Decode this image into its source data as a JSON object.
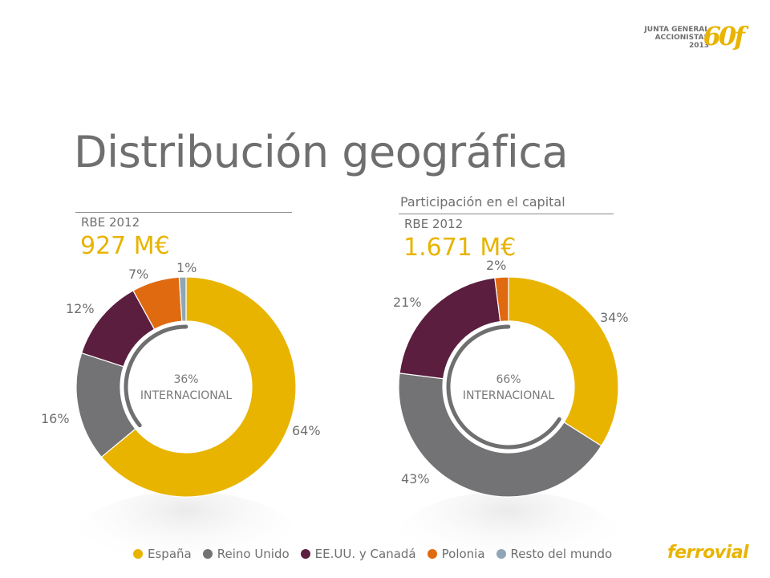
{
  "header": {
    "title": "Distribución geográfica",
    "event_logo_text": [
      "JUNTA GENERAL",
      "ACCIONISTAS",
      "2013"
    ],
    "event_logo_mark": "60f"
  },
  "left_panel": {
    "subtitle": "",
    "rbe_label": "RBE 2012",
    "rbe_value": "927 M€",
    "center_pct": "36%",
    "center_label": "INTERNACIONAL"
  },
  "right_panel": {
    "subtitle": "Participación en el capital",
    "rbe_label": "RBE 2012",
    "rbe_value": "1.671 M€",
    "center_pct": "66%",
    "center_label": "INTERNACIONAL"
  },
  "legend": [
    {
      "label": "España",
      "color": "#e8b400"
    },
    {
      "label": "Reino Unido",
      "color": "#737375"
    },
    {
      "label": "EE.UU. y Canadá",
      "color": "#5b1e3f"
    },
    {
      "label": "Polonia",
      "color": "#e06a10"
    },
    {
      "label": "Resto del mundo",
      "color": "#8ea6b6"
    }
  ],
  "chart_data": [
    {
      "type": "pie",
      "categories": [
        "España",
        "Reino Unido",
        "EE.UU. y Canadá",
        "Polonia",
        "Resto del mundo"
      ],
      "values": [
        64,
        16,
        12,
        7,
        1
      ],
      "labels": [
        "64%",
        "16%",
        "12%",
        "7%",
        "1%"
      ],
      "colors": [
        "#e8b400",
        "#737375",
        "#5b1e3f",
        "#e06a10",
        "#8ea6b6"
      ],
      "title": "RBE 2012",
      "total_label": "927 M€",
      "legend_position": "bottom"
    },
    {
      "type": "pie",
      "categories": [
        "España",
        "Reino Unido",
        "EE.UU. y Canadá",
        "Polonia"
      ],
      "values": [
        34,
        43,
        21,
        2
      ],
      "labels": [
        "34%",
        "43%",
        "21%",
        "2%"
      ],
      "colors": [
        "#e8b400",
        "#737375",
        "#5b1e3f",
        "#e06a10"
      ],
      "title": "RBE 2012",
      "total_label": "1.671 M€",
      "legend_position": "bottom"
    }
  ],
  "brand": {
    "logo_text": "ferrovial"
  }
}
